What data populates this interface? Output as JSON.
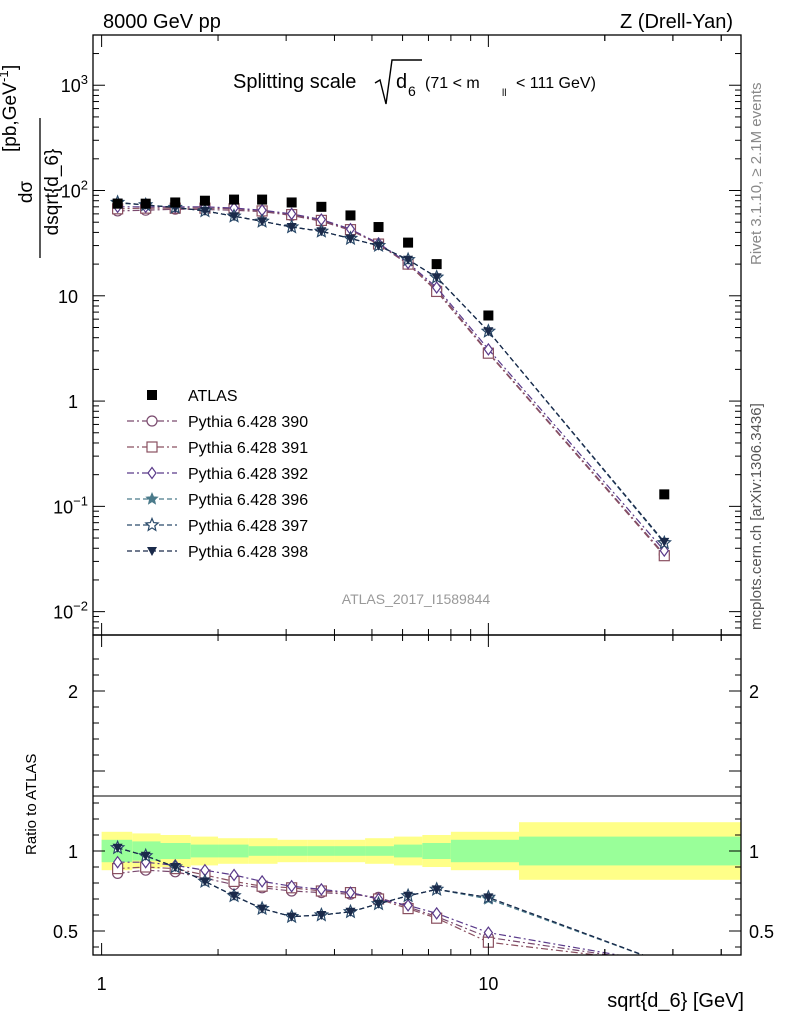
{
  "header": {
    "left": "8000 GeV pp",
    "right": "Z (Drell-Yan)"
  },
  "side_labels": {
    "rivet": "Rivet 3.1.10, ≥ 2.1M events",
    "mcplots": "mcplots.cern.ch [arXiv:1306.3436]"
  },
  "chart_data": {
    "type": "line",
    "title_prefix": "Splitting scale",
    "title_sqrt_symbol": "d",
    "title_sqrt_subscript": "6",
    "title_suffix": "(71 < m",
    "title_suffix_sub": "ll",
    "title_suffix_end": "< 111 GeV)",
    "analysis_label": "ATLAS_2017_I1589844",
    "xlabel": "sqrt{d_6} [GeV]",
    "ylabel_main": "dσ / dsqrt{d_6} [pb,GeV⁻¹]",
    "ylabel_ratio": "Ratio to ATLAS",
    "x_scale": "log",
    "xlim": [
      0.95,
      45
    ],
    "main_y_scale": "log",
    "main_ylim": [
      0.006,
      3000
    ],
    "ratio_ylim": [
      0.35,
      2.35
    ],
    "x_ticks": [
      {
        "value": 1,
        "label": "1"
      },
      {
        "value": 10,
        "label": "10"
      }
    ],
    "main_y_ticks": [
      {
        "value": 0.01,
        "base": "10",
        "exp": "−2"
      },
      {
        "value": 0.1,
        "base": "10",
        "exp": "−1"
      },
      {
        "value": 1,
        "base": "1",
        "exp": ""
      },
      {
        "value": 10,
        "base": "10",
        "exp": ""
      },
      {
        "value": 100,
        "base": "10",
        "exp": "2"
      },
      {
        "value": 1000,
        "base": "10",
        "exp": "3"
      }
    ],
    "ratio_y_ticks": [
      {
        "value": 0.5,
        "label": "0.5"
      },
      {
        "value": 1,
        "label": "1"
      },
      {
        "value": 2,
        "label": "2"
      }
    ],
    "data": {
      "name": "ATLAS",
      "x": [
        1.1,
        1.3,
        1.55,
        1.85,
        2.2,
        2.6,
        3.1,
        3.7,
        4.4,
        5.2,
        6.2,
        7.35,
        10.0,
        28.5
      ],
      "y": [
        75,
        75,
        77,
        80,
        82,
        82,
        77,
        70,
        58,
        45,
        32,
        20,
        6.5,
        0.13
      ]
    },
    "bands": {
      "edges": [
        1.0,
        1.2,
        1.42,
        1.7,
        2.0,
        2.4,
        2.85,
        3.4,
        4.0,
        4.8,
        5.7,
        6.75,
        8.0,
        12.0,
        45.0
      ],
      "stat_lo": [
        0.93,
        0.94,
        0.95,
        0.96,
        0.96,
        0.97,
        0.97,
        0.97,
        0.97,
        0.97,
        0.96,
        0.95,
        0.93,
        0.91
      ],
      "stat_hi": [
        1.07,
        1.06,
        1.05,
        1.04,
        1.04,
        1.03,
        1.03,
        1.03,
        1.03,
        1.03,
        1.04,
        1.05,
        1.07,
        1.09
      ],
      "tot_lo": [
        0.88,
        0.89,
        0.9,
        0.91,
        0.92,
        0.92,
        0.93,
        0.93,
        0.93,
        0.92,
        0.91,
        0.9,
        0.88,
        0.82
      ],
      "tot_hi": [
        1.12,
        1.11,
        1.1,
        1.09,
        1.08,
        1.08,
        1.07,
        1.07,
        1.07,
        1.08,
        1.09,
        1.1,
        1.12,
        1.18
      ],
      "stat_color": "#99ff99",
      "tot_color": "#ffff88"
    },
    "series": [
      {
        "name": "Pythia 6.428 390",
        "color": "#7a4a6e",
        "marker": "circle-open",
        "dash": "dashdot",
        "x": [
          1.1,
          1.3,
          1.55,
          1.85,
          2.2,
          2.6,
          3.1,
          3.7,
          4.4,
          5.2,
          6.2,
          7.35,
          10.0,
          28.5
        ],
        "y": [
          64,
          65,
          66.5,
          66,
          65,
          63,
          58,
          51,
          42,
          31,
          20,
          11.5,
          2.9,
          0.035
        ],
        "ratio": [
          0.86,
          0.88,
          0.87,
          0.83,
          0.79,
          0.77,
          0.75,
          0.74,
          0.73,
          0.71,
          0.65,
          0.59,
          0.46,
          0.3
        ]
      },
      {
        "name": "Pythia 6.428 391",
        "color": "#8a5060",
        "marker": "square-open",
        "dash": "dashdot",
        "x": [
          1.1,
          1.3,
          1.55,
          1.85,
          2.2,
          2.6,
          3.1,
          3.7,
          4.4,
          5.2,
          6.2,
          7.35,
          10.0,
          28.5
        ],
        "y": [
          67,
          68,
          68,
          68,
          67,
          64,
          59,
          52,
          42.5,
          31,
          20,
          11,
          2.85,
          0.034
        ],
        "ratio": [
          0.89,
          0.9,
          0.89,
          0.85,
          0.81,
          0.78,
          0.77,
          0.75,
          0.74,
          0.7,
          0.64,
          0.58,
          0.43,
          0.3
        ]
      },
      {
        "name": "Pythia 6.428 392",
        "color": "#5a3a8a",
        "marker": "diamond-open",
        "dash": "dashdot",
        "x": [
          1.1,
          1.3,
          1.55,
          1.85,
          2.2,
          2.6,
          3.1,
          3.7,
          4.4,
          5.2,
          6.2,
          7.35,
          10.0,
          28.5
        ],
        "y": [
          70,
          70,
          70,
          70,
          68,
          65,
          60,
          53,
          43,
          31.5,
          20.5,
          12,
          3.1,
          0.038
        ],
        "ratio": [
          0.93,
          0.93,
          0.91,
          0.88,
          0.85,
          0.81,
          0.78,
          0.76,
          0.74,
          0.7,
          0.66,
          0.61,
          0.49,
          0.3
        ]
      },
      {
        "name": "Pythia 6.428 396",
        "color": "#4a7a8a",
        "marker": "star-filled",
        "dash": "dash",
        "x": [
          1.1,
          1.3,
          1.55,
          1.85,
          2.2,
          2.6,
          3.1,
          3.7,
          4.4,
          5.2,
          6.2,
          7.35,
          10.0,
          28.5
        ],
        "y": [
          76,
          73,
          69,
          64,
          57,
          51,
          45,
          41,
          35,
          30,
          22,
          15,
          4.6,
          0.045
        ],
        "ratio": [
          1.02,
          0.97,
          0.9,
          0.81,
          0.72,
          0.64,
          0.59,
          0.6,
          0.62,
          0.67,
          0.72,
          0.76,
          0.7,
          0.3
        ]
      },
      {
        "name": "Pythia 6.428 397",
        "color": "#2a4a6a",
        "marker": "star-open",
        "dash": "dash",
        "x": [
          1.1,
          1.3,
          1.55,
          1.85,
          2.2,
          2.6,
          3.1,
          3.7,
          4.4,
          5.2,
          6.2,
          7.35,
          10.0,
          28.5
        ],
        "y": [
          77,
          73,
          69,
          64,
          57,
          51,
          45,
          41,
          35,
          30,
          22,
          15,
          4.6,
          0.045
        ],
        "ratio": [
          1.02,
          0.97,
          0.9,
          0.81,
          0.72,
          0.64,
          0.59,
          0.6,
          0.62,
          0.67,
          0.72,
          0.76,
          0.71,
          0.3
        ]
      },
      {
        "name": "Pythia 6.428 398",
        "color": "#1a2a4a",
        "marker": "triangle-down-filled",
        "dash": "dash",
        "x": [
          1.1,
          1.3,
          1.55,
          1.85,
          2.2,
          2.6,
          3.1,
          3.7,
          4.4,
          5.2,
          6.2,
          7.35,
          10.0,
          28.5
        ],
        "y": [
          77,
          73,
          69,
          64,
          57,
          51,
          45,
          41,
          35,
          30,
          22,
          15,
          4.6,
          0.046
        ],
        "ratio": [
          1.02,
          0.97,
          0.9,
          0.81,
          0.72,
          0.64,
          0.59,
          0.6,
          0.62,
          0.67,
          0.72,
          0.76,
          0.71,
          0.3
        ]
      }
    ]
  }
}
